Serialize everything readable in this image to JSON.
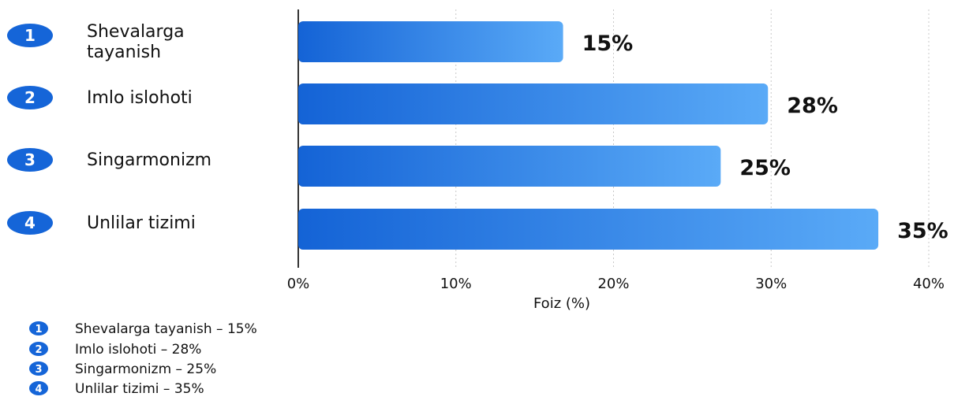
{
  "chart_data": {
    "type": "bar",
    "orientation": "horizontal",
    "badges": [
      "1",
      "2",
      "3",
      "4"
    ],
    "categories": [
      "Shevalarga tayanish",
      "Imlo islohoti",
      "Singarmonizm",
      "Unlilar tizimi"
    ],
    "category_display_lines": [
      [
        "Shevalarga",
        "tayanish"
      ],
      [
        "Imlo islohoti"
      ],
      [
        "Singarmonizm"
      ],
      [
        "Unlilar tizimi"
      ]
    ],
    "values": [
      15,
      28,
      25,
      35
    ],
    "data_labels": [
      "15%",
      "28%",
      "25%",
      "35%"
    ],
    "xlabel": "Foiz (%)",
    "xlim": [
      0,
      40
    ],
    "xticks": [
      0,
      10,
      20,
      30,
      40
    ],
    "xtick_labels": [
      "0%",
      "10%",
      "20%",
      "30%",
      "40%"
    ],
    "grid": "vertical-dotted",
    "legend": {
      "placement": "bottom-left",
      "entries": [
        "Shevalarga tayanish – 15%",
        "Imlo islohoti – 28%",
        "Singarmonizm – 25%",
        "Unlilar tizimi – 35%"
      ]
    },
    "colors": {
      "bar_start": "#1463d6",
      "bar_end": "#5aaaf7",
      "badge": "#1565d8",
      "axis": "#333333",
      "grid": "#c8c8c8"
    }
  }
}
